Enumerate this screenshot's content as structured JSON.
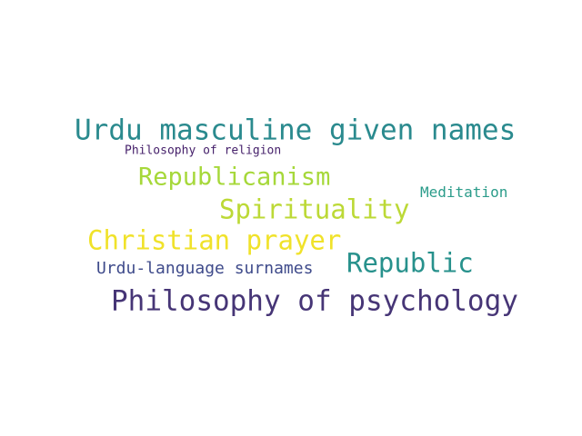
{
  "words": [
    {
      "text": "Urdu masculine given names",
      "color": "#2a8a8e"
    },
    {
      "text": "Philosophy of religion",
      "color": "#46216b"
    },
    {
      "text": "Republicanism",
      "color": "#a6d83a"
    },
    {
      "text": "Meditation",
      "color": "#2b9c8a"
    },
    {
      "text": "Spirituality",
      "color": "#bcd936"
    },
    {
      "text": "Christian prayer",
      "color": "#f0e22a"
    },
    {
      "text": "Republic",
      "color": "#27918c"
    },
    {
      "text": "Urdu-language surnames",
      "color": "#3f4b8b"
    },
    {
      "text": "Philosophy of psychology",
      "color": "#463576"
    }
  ]
}
